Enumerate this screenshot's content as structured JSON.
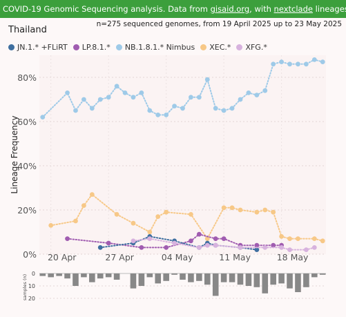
{
  "banner": {
    "text_prefix": "COVID-19 Genomic Sequencing analysis. Data from ",
    "link1": "gisaid.org",
    "text_mid": ", with ",
    "link2": "nextclade",
    "text_suffix": " lineages. Source files and more info on"
  },
  "country": "Thailand",
  "info": "n=275 sequenced genomes, from 19 April 2025 up to 23 May 2025",
  "legend": [
    {
      "label": "JN.1.* +FLiRT",
      "color": "#3f6fa0"
    },
    {
      "label": "LP.8.1.*",
      "color": "#a05cb0"
    },
    {
      "label": "NB.1.8.1.* Nimbus",
      "color": "#9ecae8"
    },
    {
      "label": "XEC.*",
      "color": "#f7c887"
    },
    {
      "label": "XFG.*",
      "color": "#d7b2de"
    }
  ],
  "chart_data": {
    "type": "line",
    "ylabel": "Lineage Frequency",
    "ylim": [
      0,
      90
    ],
    "yticks": [
      "0%",
      "20%",
      "40%",
      "60%",
      "80%"
    ],
    "xticks": [
      "20 Apr",
      "27 Apr",
      "04 May",
      "11 May",
      "18 May"
    ],
    "xrange": [
      "2025-04-19",
      "2025-05-23"
    ],
    "grid": true,
    "series": [
      {
        "name": "NB.1.8.1.* Nimbus",
        "color": "#9ecae8",
        "x": [
          "2025-04-19",
          "2025-04-22",
          "2025-04-23",
          "2025-04-24",
          "2025-04-25",
          "2025-04-26",
          "2025-04-27",
          "2025-04-28",
          "2025-04-29",
          "2025-04-30",
          "2025-05-01",
          "2025-05-02",
          "2025-05-03",
          "2025-05-04",
          "2025-05-05",
          "2025-05-06",
          "2025-05-07",
          "2025-05-08",
          "2025-05-09",
          "2025-05-10",
          "2025-05-11",
          "2025-05-12",
          "2025-05-13",
          "2025-05-14",
          "2025-05-15",
          "2025-05-16",
          "2025-05-17",
          "2025-05-18",
          "2025-05-19",
          "2025-05-20",
          "2025-05-21",
          "2025-05-22",
          "2025-05-23"
        ],
        "values": [
          62,
          73,
          65,
          70,
          66,
          70,
          71,
          76,
          73,
          71,
          73,
          65,
          63,
          63,
          67,
          66,
          71,
          71,
          79,
          66,
          65,
          66,
          70,
          73,
          72,
          74,
          86,
          87,
          86,
          86,
          86,
          88,
          87
        ]
      },
      {
        "name": "XEC.*",
        "color": "#f7c887",
        "x": [
          "2025-04-20",
          "2025-04-23",
          "2025-04-24",
          "2025-04-25",
          "2025-04-28",
          "2025-04-30",
          "2025-05-02",
          "2025-05-03",
          "2025-05-04",
          "2025-05-07",
          "2025-05-09",
          "2025-05-11",
          "2025-05-12",
          "2025-05-13",
          "2025-05-15",
          "2025-05-16",
          "2025-05-17",
          "2025-05-18",
          "2025-05-19",
          "2025-05-20",
          "2025-05-22",
          "2025-05-23"
        ],
        "values": [
          13,
          15,
          22,
          27,
          18,
          14,
          10,
          17,
          19,
          18,
          7,
          21,
          21,
          20,
          19,
          20,
          19,
          8,
          7,
          7,
          7,
          6
        ]
      },
      {
        "name": "LP.8.1.*",
        "color": "#a05cb0",
        "x": [
          "2025-04-22",
          "2025-04-27",
          "2025-05-01",
          "2025-05-04",
          "2025-05-07",
          "2025-05-08",
          "2025-05-10",
          "2025-05-11",
          "2025-05-13",
          "2025-05-15",
          "2025-05-17",
          "2025-05-18"
        ],
        "values": [
          7,
          5,
          3,
          3,
          6,
          9,
          7,
          7,
          4,
          4,
          4,
          4
        ]
      },
      {
        "name": "JN.1.* +FLiRT",
        "color": "#3f6fa0",
        "x": [
          "2025-04-26",
          "2025-04-30",
          "2025-05-02",
          "2025-05-05",
          "2025-05-08",
          "2025-05-09",
          "2025-05-10",
          "2025-05-13",
          "2025-05-15"
        ],
        "values": [
          3,
          5,
          8,
          6,
          3,
          5,
          4,
          3,
          2
        ]
      },
      {
        "name": "XFG.*",
        "color": "#d7b2de",
        "x": [
          "2025-04-30",
          "2025-05-02",
          "2025-05-05",
          "2025-05-08",
          "2025-05-09",
          "2025-05-10",
          "2025-05-13",
          "2025-05-16",
          "2025-05-18",
          "2025-05-19",
          "2025-05-21",
          "2025-05-22"
        ],
        "values": [
          6,
          7,
          5,
          3,
          4,
          4,
          3,
          3,
          3,
          2,
          2,
          3
        ]
      }
    ],
    "samples": {
      "ylabel": "samples (n)",
      "yticks": [
        "0",
        "10",
        "20"
      ],
      "x": [
        "2025-04-19",
        "2025-04-20",
        "2025-04-21",
        "2025-04-22",
        "2025-04-23",
        "2025-04-24",
        "2025-04-25",
        "2025-04-26",
        "2025-04-27",
        "2025-04-28",
        "2025-04-29",
        "2025-04-30",
        "2025-05-01",
        "2025-05-02",
        "2025-05-03",
        "2025-05-04",
        "2025-05-05",
        "2025-05-06",
        "2025-05-07",
        "2025-05-08",
        "2025-05-09",
        "2025-05-10",
        "2025-05-11",
        "2025-05-12",
        "2025-05-13",
        "2025-05-14",
        "2025-05-15",
        "2025-05-16",
        "2025-05-17",
        "2025-05-18",
        "2025-05-19",
        "2025-05-20",
        "2025-05-21",
        "2025-05-22",
        "2025-05-23"
      ],
      "values": [
        2,
        3,
        2,
        4,
        10,
        3,
        7,
        4,
        3,
        5,
        0,
        12,
        10,
        3,
        8,
        6,
        1,
        5,
        7,
        6,
        9,
        18,
        7,
        7,
        9,
        10,
        11,
        16,
        9,
        8,
        12,
        15,
        11,
        3,
        1
      ]
    }
  }
}
